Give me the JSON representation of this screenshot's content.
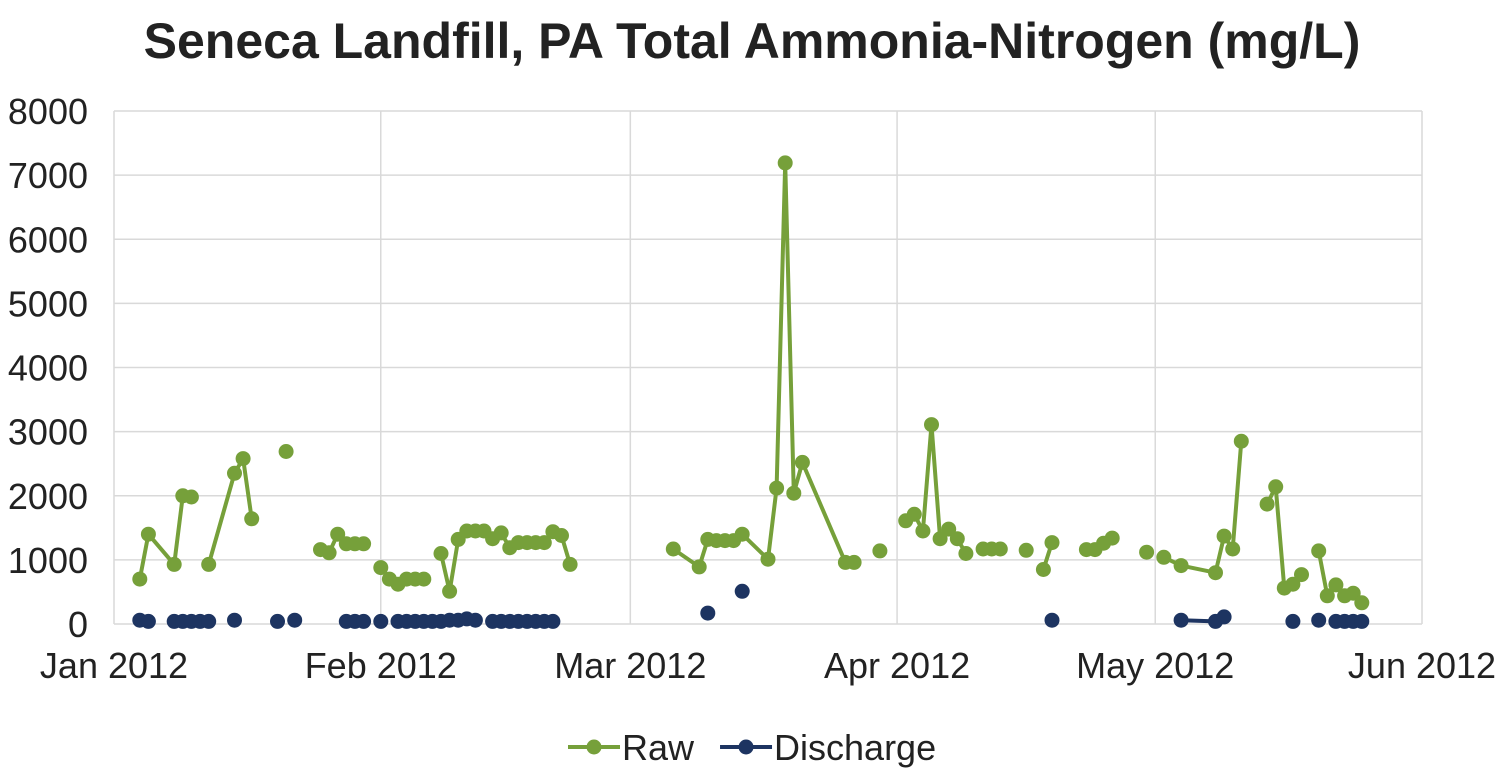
{
  "chart_data": {
    "type": "line",
    "title": "Seneca Landfill, PA Total Ammonia-Nitrogen (mg/L)",
    "xlabel": "",
    "ylabel": "",
    "x_axis": {
      "type": "date",
      "min": "2012-01-01",
      "max": "2012-06-01",
      "ticks": [
        "2012-01-01",
        "2012-02-01",
        "2012-03-01",
        "2012-04-01",
        "2012-05-01",
        "2012-06-01"
      ],
      "tick_labels": [
        "Jan 2012",
        "Feb 2012",
        "Mar 2012",
        "Apr 2012",
        "May 2012",
        "Jun 2012"
      ]
    },
    "y_axis": {
      "min": 0,
      "max": 8000,
      "ticks": [
        0,
        1000,
        2000,
        3000,
        4000,
        5000,
        6000,
        7000,
        8000
      ],
      "tick_labels": [
        "0",
        "1000",
        "2000",
        "3000",
        "4000",
        "5000",
        "6000",
        "7000",
        "8000"
      ]
    },
    "grid": true,
    "legend_position": "bottom",
    "colors": {
      "Raw": "#76a03a",
      "Discharge": "#1d3461",
      "grid": "#d9d9d9",
      "text": "#222222"
    },
    "series": [
      {
        "name": "Raw",
        "segments": [
          [
            [
              "2012-01-04",
              700
            ],
            [
              "2012-01-05",
              1400
            ],
            [
              "2012-01-08",
              930
            ],
            [
              "2012-01-09",
              2000
            ],
            [
              "2012-01-10",
              1980
            ]
          ],
          [
            [
              "2012-01-12",
              930
            ],
            [
              "2012-01-15",
              2350
            ],
            [
              "2012-01-16",
              2580
            ],
            [
              "2012-01-17",
              1640
            ]
          ],
          [
            [
              "2012-01-21",
              2690
            ]
          ],
          [
            [
              "2012-01-25",
              1160
            ],
            [
              "2012-01-26",
              1110
            ],
            [
              "2012-01-27",
              1400
            ]
          ],
          [
            [
              "2012-01-28",
              1250
            ],
            [
              "2012-01-29",
              1250
            ],
            [
              "2012-01-30",
              1250
            ]
          ],
          [
            [
              "2012-02-01",
              880
            ],
            [
              "2012-02-02",
              700
            ],
            [
              "2012-02-03",
              620
            ],
            [
              "2012-02-04",
              700
            ],
            [
              "2012-02-05",
              700
            ],
            [
              "2012-02-06",
              700
            ]
          ],
          [
            [
              "2012-02-08",
              1100
            ],
            [
              "2012-02-09",
              510
            ],
            [
              "2012-02-10",
              1320
            ],
            [
              "2012-02-11",
              1450
            ],
            [
              "2012-02-12",
              1450
            ],
            [
              "2012-02-13",
              1450
            ],
            [
              "2012-02-14",
              1330
            ],
            [
              "2012-02-15",
              1420
            ],
            [
              "2012-02-16",
              1190
            ],
            [
              "2012-02-17",
              1270
            ],
            [
              "2012-02-18",
              1270
            ],
            [
              "2012-02-19",
              1270
            ],
            [
              "2012-02-20",
              1270
            ],
            [
              "2012-02-21",
              1440
            ],
            [
              "2012-02-22",
              1380
            ],
            [
              "2012-02-23",
              930
            ]
          ],
          [
            [
              "2012-03-06",
              1170
            ],
            [
              "2012-03-09",
              890
            ],
            [
              "2012-03-10",
              1320
            ],
            [
              "2012-03-11",
              1300
            ],
            [
              "2012-03-12",
              1300
            ],
            [
              "2012-03-13",
              1300
            ],
            [
              "2012-03-14",
              1400
            ],
            [
              "2012-03-17",
              1010
            ],
            [
              "2012-03-18",
              2120
            ],
            [
              "2012-03-19",
              7190
            ],
            [
              "2012-03-20",
              2040
            ],
            [
              "2012-03-21",
              2520
            ],
            [
              "2012-03-26",
              960
            ],
            [
              "2012-03-27",
              960
            ]
          ],
          [
            [
              "2012-03-30",
              1140
            ]
          ],
          [
            [
              "2012-04-02",
              1610
            ],
            [
              "2012-04-03",
              1710
            ],
            [
              "2012-04-04",
              1450
            ],
            [
              "2012-04-05",
              3110
            ],
            [
              "2012-04-06",
              1330
            ],
            [
              "2012-04-07",
              1480
            ],
            [
              "2012-04-08",
              1330
            ],
            [
              "2012-04-09",
              1100
            ]
          ],
          [
            [
              "2012-04-11",
              1170
            ],
            [
              "2012-04-12",
              1170
            ],
            [
              "2012-04-13",
              1170
            ]
          ],
          [
            [
              "2012-04-16",
              1150
            ]
          ],
          [
            [
              "2012-04-18",
              850
            ],
            [
              "2012-04-19",
              1270
            ]
          ],
          [
            [
              "2012-04-23",
              1160
            ],
            [
              "2012-04-24",
              1160
            ],
            [
              "2012-04-25",
              1260
            ],
            [
              "2012-04-26",
              1340
            ]
          ],
          [
            [
              "2012-04-30",
              1120
            ]
          ],
          [
            [
              "2012-05-02",
              1040
            ],
            [
              "2012-05-04",
              910
            ],
            [
              "2012-05-08",
              800
            ],
            [
              "2012-05-09",
              1370
            ],
            [
              "2012-05-10",
              1170
            ],
            [
              "2012-05-11",
              2850
            ]
          ],
          [
            [
              "2012-05-14",
              1870
            ],
            [
              "2012-05-15",
              2140
            ],
            [
              "2012-05-16",
              560
            ],
            [
              "2012-05-17",
              620
            ],
            [
              "2012-05-18",
              770
            ]
          ],
          [
            [
              "2012-05-20",
              1140
            ],
            [
              "2012-05-21",
              440
            ],
            [
              "2012-05-22",
              610
            ],
            [
              "2012-05-23",
              440
            ],
            [
              "2012-05-24",
              480
            ],
            [
              "2012-05-25",
              330
            ]
          ]
        ]
      },
      {
        "name": "Discharge",
        "segments": [
          [
            [
              "2012-01-04",
              60
            ],
            [
              "2012-01-05",
              40
            ]
          ],
          [
            [
              "2012-01-08",
              40
            ],
            [
              "2012-01-09",
              40
            ],
            [
              "2012-01-10",
              40
            ],
            [
              "2012-01-11",
              40
            ],
            [
              "2012-01-12",
              40
            ]
          ],
          [
            [
              "2012-01-15",
              60
            ]
          ],
          [
            [
              "2012-01-20",
              40
            ]
          ],
          [
            [
              "2012-01-22",
              60
            ]
          ],
          [
            [
              "2012-01-28",
              40
            ],
            [
              "2012-01-29",
              40
            ],
            [
              "2012-01-30",
              40
            ]
          ],
          [
            [
              "2012-02-01",
              40
            ]
          ],
          [
            [
              "2012-02-03",
              40
            ],
            [
              "2012-02-04",
              40
            ],
            [
              "2012-02-05",
              40
            ],
            [
              "2012-02-06",
              40
            ],
            [
              "2012-02-07",
              40
            ],
            [
              "2012-02-08",
              40
            ],
            [
              "2012-02-09",
              60
            ],
            [
              "2012-02-10",
              60
            ],
            [
              "2012-02-11",
              80
            ],
            [
              "2012-02-12",
              60
            ]
          ],
          [
            [
              "2012-02-14",
              40
            ],
            [
              "2012-02-15",
              40
            ],
            [
              "2012-02-16",
              40
            ],
            [
              "2012-02-17",
              40
            ],
            [
              "2012-02-18",
              40
            ],
            [
              "2012-02-19",
              40
            ],
            [
              "2012-02-20",
              40
            ],
            [
              "2012-02-21",
              40
            ]
          ],
          [
            [
              "2012-03-10",
              170
            ]
          ],
          [
            [
              "2012-03-14",
              510
            ]
          ],
          [
            [
              "2012-04-19",
              60
            ]
          ],
          [
            [
              "2012-05-04",
              60
            ],
            [
              "2012-05-08",
              40
            ],
            [
              "2012-05-09",
              110
            ]
          ],
          [
            [
              "2012-05-17",
              40
            ]
          ],
          [
            [
              "2012-05-20",
              60
            ]
          ],
          [
            [
              "2012-05-22",
              40
            ],
            [
              "2012-05-23",
              40
            ],
            [
              "2012-05-24",
              40
            ],
            [
              "2012-05-25",
              40
            ]
          ]
        ]
      }
    ]
  }
}
